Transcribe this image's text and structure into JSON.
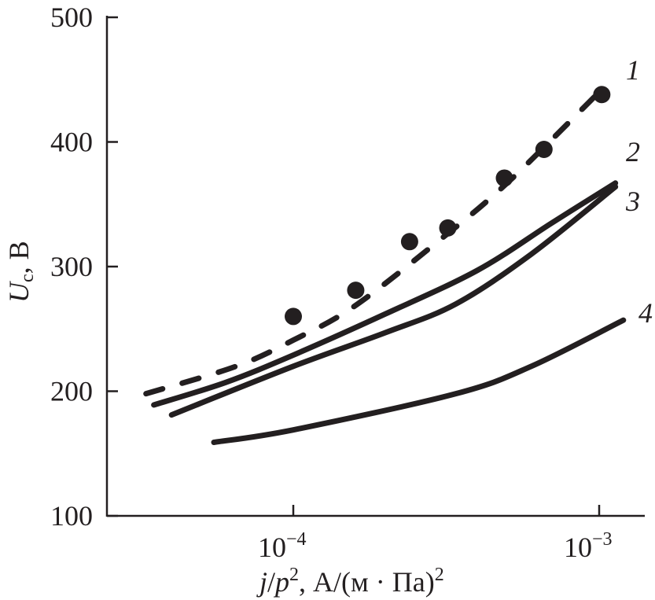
{
  "chart_data": {
    "type": "line",
    "title": "",
    "xlabel": "j/p², А/(м · Па)²",
    "xlabel_parts": {
      "j": "j",
      "slash": "/",
      "p": "p",
      "sup": "2",
      "rest": ", А/(м · Па)",
      "sup2": "2"
    },
    "ylabel": "Uc, В",
    "ylabel_parts": {
      "U": "U",
      "sub": "c",
      "rest": ", В"
    },
    "xscale": "log",
    "xlim": [
      2.46e-05,
      0.00141
    ],
    "ylim": [
      100,
      500
    ],
    "yticks": [
      100,
      200,
      300,
      400,
      500
    ],
    "ytick_labels": [
      "100",
      "200",
      "300",
      "400",
      "500"
    ],
    "xticks": [
      0.0001,
      0.001
    ],
    "xtick_labels": [
      {
        "base": "10",
        "exp": "−4"
      },
      {
        "base": "10",
        "exp": "−3"
      }
    ],
    "grid": false,
    "series": [
      {
        "name": "1",
        "style": "dashed",
        "x": [
          3.3e-05,
          6.5e-05,
          0.0001,
          0.000158,
          0.0003,
          0.0005,
          0.001
        ],
        "y": [
          198,
          220,
          241,
          268,
          321,
          367,
          440
        ]
      },
      {
        "name": "1-points",
        "style": "markers",
        "x": [
          0.0001,
          0.00016,
          0.00024,
          0.00032,
          0.00049,
          0.00066,
          0.00102
        ],
        "y": [
          260,
          281,
          320,
          331,
          371,
          394,
          438
        ]
      },
      {
        "name": "2",
        "style": "solid",
        "x": [
          3.5e-05,
          6e-05,
          0.0001,
          0.0002,
          0.0004,
          0.0007,
          0.00113
        ],
        "y": [
          189,
          207,
          229,
          262,
          297,
          335,
          367
        ]
      },
      {
        "name": "3",
        "style": "solid",
        "x": [
          4e-05,
          0.0001,
          0.0002,
          0.00034,
          0.0006,
          0.00113
        ],
        "y": [
          181,
          220,
          247,
          270,
          310,
          364
        ]
      },
      {
        "name": "4",
        "style": "solid",
        "x": [
          5.5e-05,
          0.0001,
          0.00034,
          0.0006,
          0.0012
        ],
        "y": [
          159,
          169,
          198,
          220,
          257
        ]
      }
    ],
    "curve_labels": [
      "1",
      "2",
      "3",
      "4"
    ],
    "color": "#231f20"
  }
}
